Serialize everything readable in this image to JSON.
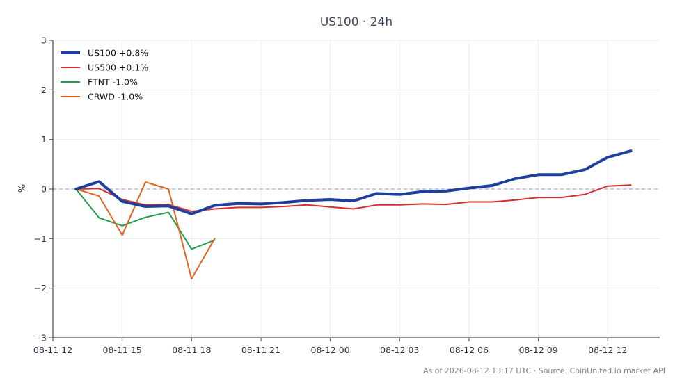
{
  "chart_data": {
    "type": "line",
    "title": "US100 · 24h",
    "ylabel": "%",
    "xlabel": "",
    "ylim": [
      -3,
      3
    ],
    "yticks": [
      -3,
      -2,
      -1,
      0,
      1,
      2,
      3
    ],
    "ytick_labels": [
      "−3",
      "−2",
      "−1",
      "0",
      "1",
      "2",
      "3"
    ],
    "xlim": [
      "2026-08-11 12:00",
      "2026-08-12 14:15"
    ],
    "xticks": [
      "2026-08-11 12:00",
      "2026-08-11 15:00",
      "2026-08-11 18:00",
      "2026-08-11 21:00",
      "2026-08-12 00:00",
      "2026-08-12 03:00",
      "2026-08-12 06:00",
      "2026-08-12 09:00",
      "2026-08-12 12:00"
    ],
    "xtick_labels": [
      "08-11 12",
      "08-11 15",
      "08-11 18",
      "08-11 21",
      "08-12 00",
      "08-12 03",
      "08-12 06",
      "08-12 09",
      "08-12 12"
    ],
    "grid": true,
    "legend_position": "top-left",
    "reference_line": 0,
    "series": [
      {
        "name": "US100 +0.8%",
        "color": "#1f3f9e",
        "width": 4,
        "x": [
          "2026-08-11 13:00",
          "2026-08-11 14:00",
          "2026-08-11 15:00",
          "2026-08-11 16:00",
          "2026-08-11 17:00",
          "2026-08-11 18:00",
          "2026-08-11 19:00",
          "2026-08-11 20:00",
          "2026-08-11 21:00",
          "2026-08-11 22:00",
          "2026-08-11 23:00",
          "2026-08-12 00:00",
          "2026-08-12 01:00",
          "2026-08-12 02:00",
          "2026-08-12 03:00",
          "2026-08-12 04:00",
          "2026-08-12 05:00",
          "2026-08-12 06:00",
          "2026-08-12 07:00",
          "2026-08-12 08:00",
          "2026-08-12 09:00",
          "2026-08-12 10:00",
          "2026-08-12 11:00",
          "2026-08-12 12:00",
          "2026-08-12 13:00"
        ],
        "y": [
          0.0,
          0.15,
          -0.25,
          -0.35,
          -0.34,
          -0.5,
          -0.33,
          -0.29,
          -0.3,
          -0.27,
          -0.23,
          -0.21,
          -0.24,
          -0.09,
          -0.11,
          -0.05,
          -0.04,
          0.02,
          0.07,
          0.21,
          0.29,
          0.29,
          0.39,
          0.64,
          0.77
        ]
      },
      {
        "name": "US500 +0.1%",
        "color": "#d32f2f",
        "width": 2,
        "x": [
          "2026-08-11 13:00",
          "2026-08-11 14:00",
          "2026-08-11 15:00",
          "2026-08-11 16:00",
          "2026-08-11 17:00",
          "2026-08-11 18:00",
          "2026-08-11 19:00",
          "2026-08-11 20:00",
          "2026-08-11 21:00",
          "2026-08-11 22:00",
          "2026-08-11 23:00",
          "2026-08-12 00:00",
          "2026-08-12 01:00",
          "2026-08-12 02:00",
          "2026-08-12 03:00",
          "2026-08-12 04:00",
          "2026-08-12 05:00",
          "2026-08-12 06:00",
          "2026-08-12 07:00",
          "2026-08-12 08:00",
          "2026-08-12 09:00",
          "2026-08-12 10:00",
          "2026-08-12 11:00",
          "2026-08-12 12:00",
          "2026-08-12 13:00"
        ],
        "y": [
          0.0,
          0.01,
          -0.21,
          -0.32,
          -0.31,
          -0.45,
          -0.4,
          -0.37,
          -0.37,
          -0.35,
          -0.32,
          -0.36,
          -0.4,
          -0.32,
          -0.32,
          -0.3,
          -0.31,
          -0.26,
          -0.26,
          -0.22,
          -0.17,
          -0.17,
          -0.11,
          0.06,
          0.08
        ]
      },
      {
        "name": "FTNT -1.0%",
        "color": "#1e9e48",
        "width": 2,
        "x": [
          "2026-08-11 13:00",
          "2026-08-11 14:00",
          "2026-08-11 15:00",
          "2026-08-11 16:00",
          "2026-08-11 17:00",
          "2026-08-11 18:00",
          "2026-08-11 19:00"
        ],
        "y": [
          0.0,
          -0.58,
          -0.74,
          -0.57,
          -0.47,
          -1.21,
          -1.03
        ]
      },
      {
        "name": "CRWD -1.0%",
        "color": "#e0621b",
        "width": 2,
        "x": [
          "2026-08-11 13:00",
          "2026-08-11 14:00",
          "2026-08-11 15:00",
          "2026-08-11 16:00",
          "2026-08-11 17:00",
          "2026-08-11 18:00",
          "2026-08-11 19:00"
        ],
        "y": [
          0.0,
          -0.14,
          -0.93,
          0.14,
          0.0,
          -1.81,
          -1.0
        ]
      }
    ]
  },
  "footer": "As of 2026-08-12 13:17 UTC · Source: CoinUnited.io market API",
  "colors": {
    "axis": "#3a4658",
    "grid": "#ebedf0",
    "zero_line": "#8f9ab0"
  }
}
